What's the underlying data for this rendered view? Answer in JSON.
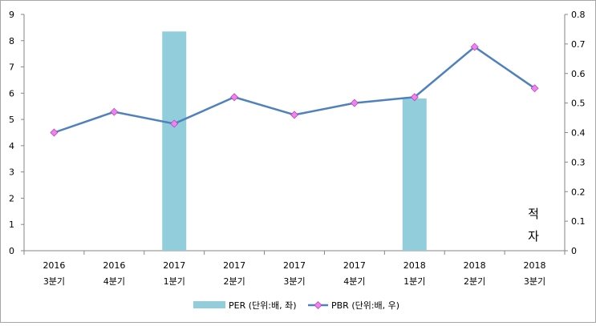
{
  "chart_data": {
    "type": "bar+line",
    "categories": [
      [
        "2016",
        "3분기"
      ],
      [
        "2016",
        "4분기"
      ],
      [
        "2017",
        "1분기"
      ],
      [
        "2017",
        "2분기"
      ],
      [
        "2017",
        "3분기"
      ],
      [
        "2017",
        "4분기"
      ],
      [
        "2018",
        "1분기"
      ],
      [
        "2018",
        "2분기"
      ],
      [
        "2018",
        "3분기"
      ]
    ],
    "series": [
      {
        "name": "PER (단위:배, 좌)",
        "type": "bar",
        "axis": "left",
        "color": "#92cddc",
        "values": [
          null,
          null,
          8.35,
          null,
          null,
          null,
          5.8,
          null,
          null
        ]
      },
      {
        "name": "PBR (단위:배, 우)",
        "type": "line",
        "axis": "right",
        "color": "#4f81bd",
        "marker_color": "#ee82ee",
        "values": [
          0.4,
          0.47,
          0.43,
          0.52,
          0.46,
          0.5,
          0.52,
          0.69,
          0.55
        ]
      }
    ],
    "y_left": {
      "min": 0,
      "max": 9,
      "ticks": [
        "0",
        "1",
        "2",
        "3",
        "4",
        "5",
        "6",
        "7",
        "8",
        "9"
      ]
    },
    "y_right": {
      "min": 0,
      "max": 0.8,
      "ticks": [
        "0",
        "0.1",
        "0.2",
        "0.3",
        "0.4",
        "0.5",
        "0.6",
        "0.7",
        "0.8"
      ]
    },
    "annotation": {
      "line1": "적",
      "line2": "자"
    },
    "legend_position": "bottom",
    "grid": false
  }
}
